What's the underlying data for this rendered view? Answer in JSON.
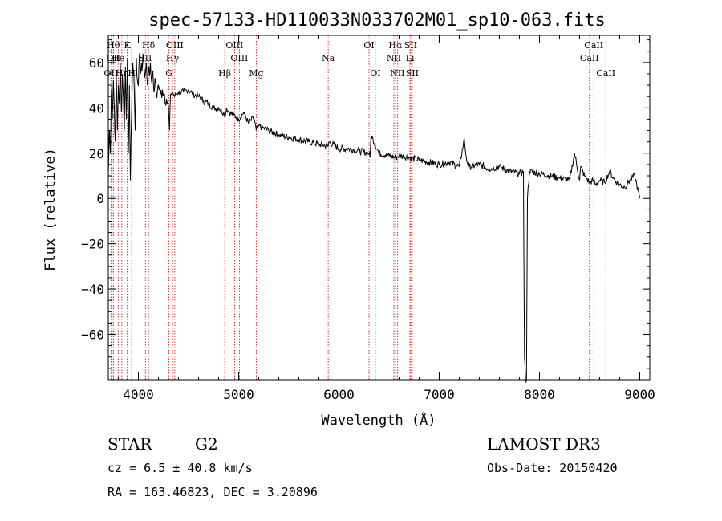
{
  "chart_data": {
    "type": "line",
    "title": "spec-57133-HD110033N033702M01_sp10-063.fits",
    "xlabel": "Wavelength (Å)",
    "ylabel": "Flux (relative)",
    "xlim": [
      3700,
      9100
    ],
    "ylim": [
      -80,
      72
    ],
    "xticks": [
      4000,
      5000,
      6000,
      7000,
      8000,
      9000
    ],
    "yticks": [
      -60,
      -40,
      -20,
      0,
      20,
      40,
      60
    ],
    "grid": false,
    "series": [
      {
        "name": "flux",
        "x": [
          3700,
          3710,
          3720,
          3730,
          3740,
          3750,
          3760,
          3770,
          3780,
          3790,
          3800,
          3810,
          3820,
          3830,
          3840,
          3850,
          3860,
          3870,
          3880,
          3890,
          3900,
          3910,
          3920,
          3933,
          3945,
          3955,
          3968,
          3980,
          3990,
          4000,
          4010,
          4020,
          4030,
          4040,
          4050,
          4060,
          4070,
          4080,
          4090,
          4101,
          4110,
          4120,
          4130,
          4140,
          4150,
          4160,
          4170,
          4180,
          4190,
          4200,
          4220,
          4240,
          4260,
          4280,
          4300,
          4310,
          4320,
          4340,
          4360,
          4380,
          4400,
          4450,
          4500,
          4550,
          4600,
          4650,
          4700,
          4750,
          4800,
          4850,
          4861,
          4880,
          4900,
          4950,
          5000,
          5050,
          5100,
          5150,
          5175,
          5200,
          5250,
          5300,
          5400,
          5500,
          5600,
          5700,
          5800,
          5893,
          5900,
          6000,
          6100,
          6200,
          6300,
          6310,
          6320,
          6400,
          6500,
          6563,
          6600,
          6700,
          6800,
          6900,
          7000,
          7100,
          7200,
          7250,
          7270,
          7280,
          7300,
          7400,
          7500,
          7600,
          7700,
          7800,
          7840,
          7850,
          7860,
          7870,
          7880,
          7900,
          8000,
          8100,
          8200,
          8300,
          8350,
          8400,
          8410,
          8450,
          8500,
          8540,
          8560,
          8600,
          8650,
          8700,
          8750,
          8800,
          8850,
          8900,
          8950,
          9000
        ],
        "values": [
          10,
          30,
          20,
          48,
          35,
          52,
          40,
          25,
          55,
          30,
          50,
          42,
          60,
          38,
          55,
          45,
          30,
          58,
          35,
          62,
          20,
          50,
          8,
          38,
          60,
          55,
          30,
          62,
          52,
          50,
          64,
          55,
          60,
          58,
          62,
          56,
          55,
          60,
          50,
          58,
          54,
          60,
          52,
          56,
          50,
          48,
          52,
          45,
          48,
          50,
          46,
          48,
          46,
          44,
          40,
          30,
          46,
          47,
          45,
          46,
          47,
          47,
          48,
          46,
          45,
          43,
          42,
          40,
          40,
          38,
          36,
          40,
          38,
          37,
          35,
          38,
          33,
          36,
          30,
          32,
          31,
          30,
          28,
          27,
          26,
          25,
          24,
          23,
          25,
          22,
          22,
          21,
          20,
          18,
          28,
          20,
          19,
          18,
          19,
          18,
          17,
          16,
          15,
          16,
          14,
          26,
          18,
          16,
          14,
          15,
          13,
          14,
          12,
          11,
          12,
          -70,
          -80,
          -80,
          0,
          12,
          11,
          10,
          9,
          8,
          20,
          8,
          14,
          10,
          7,
          8,
          6,
          8,
          7,
          12,
          8,
          6,
          5,
          8,
          10,
          0
        ]
      }
    ],
    "line_markers": [
      {
        "name": "OII",
        "wavelength": 3727,
        "row": 2
      },
      {
        "name": "Hθ",
        "wavelength": 3750,
        "row": 0
      },
      {
        "name": "OII",
        "wavelength": 3750,
        "row": 1
      },
      {
        "name": "He",
        "wavelength": 3798,
        "row": 1
      },
      {
        "name": "Hη",
        "wavelength": 3835,
        "row": 2
      },
      {
        "name": "K",
        "wavelength": 3889,
        "row": 0
      },
      {
        "name": "H",
        "wavelength": 3933,
        "row": 2
      },
      {
        "name": "Hδ",
        "wavelength": 4101,
        "row": 0
      },
      {
        "name": "SII",
        "wavelength": 4070,
        "row": 1
      },
      {
        "name": "OIII",
        "wavelength": 4363,
        "row": 0
      },
      {
        "name": "Hγ",
        "wavelength": 4340,
        "row": 1
      },
      {
        "name": "G",
        "wavelength": 4305,
        "row": 2
      },
      {
        "name": "Hβ",
        "wavelength": 4861,
        "row": 2
      },
      {
        "name": "OIII",
        "wavelength": 4959,
        "row": 0
      },
      {
        "name": "OIII",
        "wavelength": 5007,
        "row": 1
      },
      {
        "name": "Mg",
        "wavelength": 5175,
        "row": 2
      },
      {
        "name": "Na",
        "wavelength": 5893,
        "row": 1
      },
      {
        "name": "OI",
        "wavelength": 6300,
        "row": 0
      },
      {
        "name": "OI",
        "wavelength": 6363,
        "row": 2
      },
      {
        "name": "Hα",
        "wavelength": 6563,
        "row": 0
      },
      {
        "name": "NII",
        "wavelength": 6548,
        "row": 1
      },
      {
        "name": "NII",
        "wavelength": 6583,
        "row": 2
      },
      {
        "name": "SII",
        "wavelength": 6716,
        "row": 0
      },
      {
        "name": "Li",
        "wavelength": 6708,
        "row": 1
      },
      {
        "name": "SII",
        "wavelength": 6731,
        "row": 2
      },
      {
        "name": "CaII",
        "wavelength": 8542,
        "row": 0
      },
      {
        "name": "CaII",
        "wavelength": 8498,
        "row": 1
      },
      {
        "name": "CaII",
        "wavelength": 8662,
        "row": 2
      }
    ]
  },
  "info": {
    "object_class": "STAR",
    "subclass": "G2",
    "survey": "LAMOST DR3",
    "cz": "cz = 6.5 ± 40.8 km/s",
    "obs_date": "Obs-Date: 20150420",
    "coords": "RA = 163.46823, DEC =    3.20896"
  }
}
